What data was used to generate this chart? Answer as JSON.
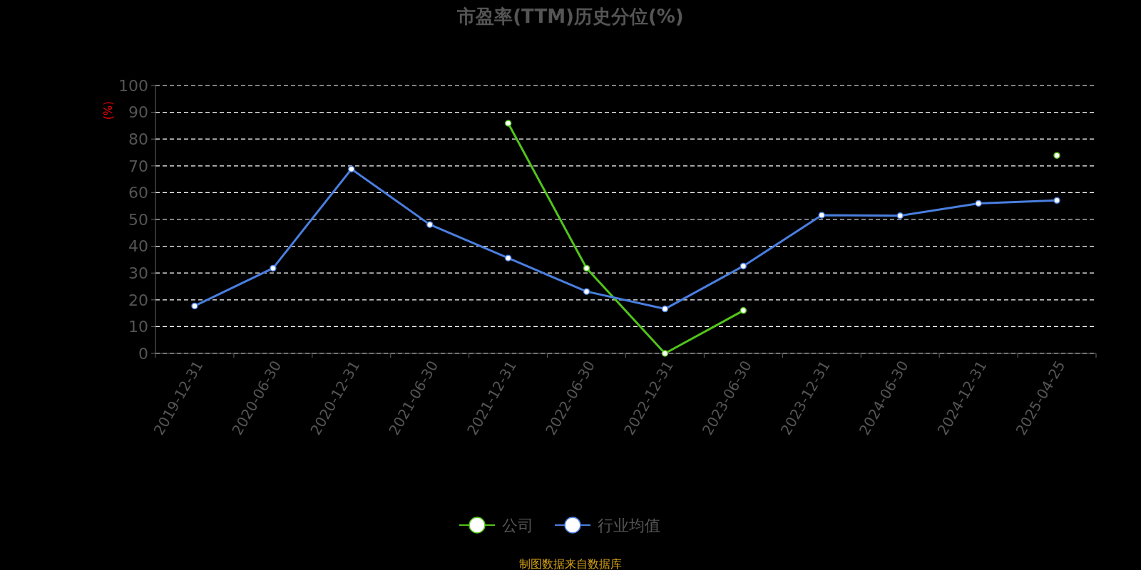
{
  "chart_data": {
    "type": "line",
    "title": "市盈率(TTM)历史分位(%)",
    "ylabel": "(%)",
    "categories": [
      "2019-12-31",
      "2020-06-30",
      "2020-12-31",
      "2021-06-30",
      "2021-12-31",
      "2022-06-30",
      "2022-12-31",
      "2023-06-30",
      "2023-12-31",
      "2024-06-30",
      "2024-12-31",
      "2025-04-25"
    ],
    "series": [
      {
        "name": "公司",
        "color": "#52c41a",
        "values": [
          null,
          null,
          null,
          null,
          85.9,
          31.8,
          0,
          16.0,
          null,
          null,
          null,
          73.9
        ]
      },
      {
        "name": "行业均值",
        "color": "#4a7fe0",
        "values": [
          17.7,
          31.8,
          68.8,
          48.1,
          35.6,
          23.1,
          16.6,
          32.6,
          51.6,
          51.4,
          56.0,
          57.1
        ]
      }
    ],
    "ylim": [
      0,
      100
    ],
    "yticks": [
      0,
      10,
      20,
      30,
      40,
      50,
      60,
      70,
      80,
      90,
      100
    ],
    "grid": "y",
    "legend": "bottom",
    "marker": "circle",
    "line_style": "solid",
    "annotations": [
      "制图数据来自数据库"
    ]
  }
}
